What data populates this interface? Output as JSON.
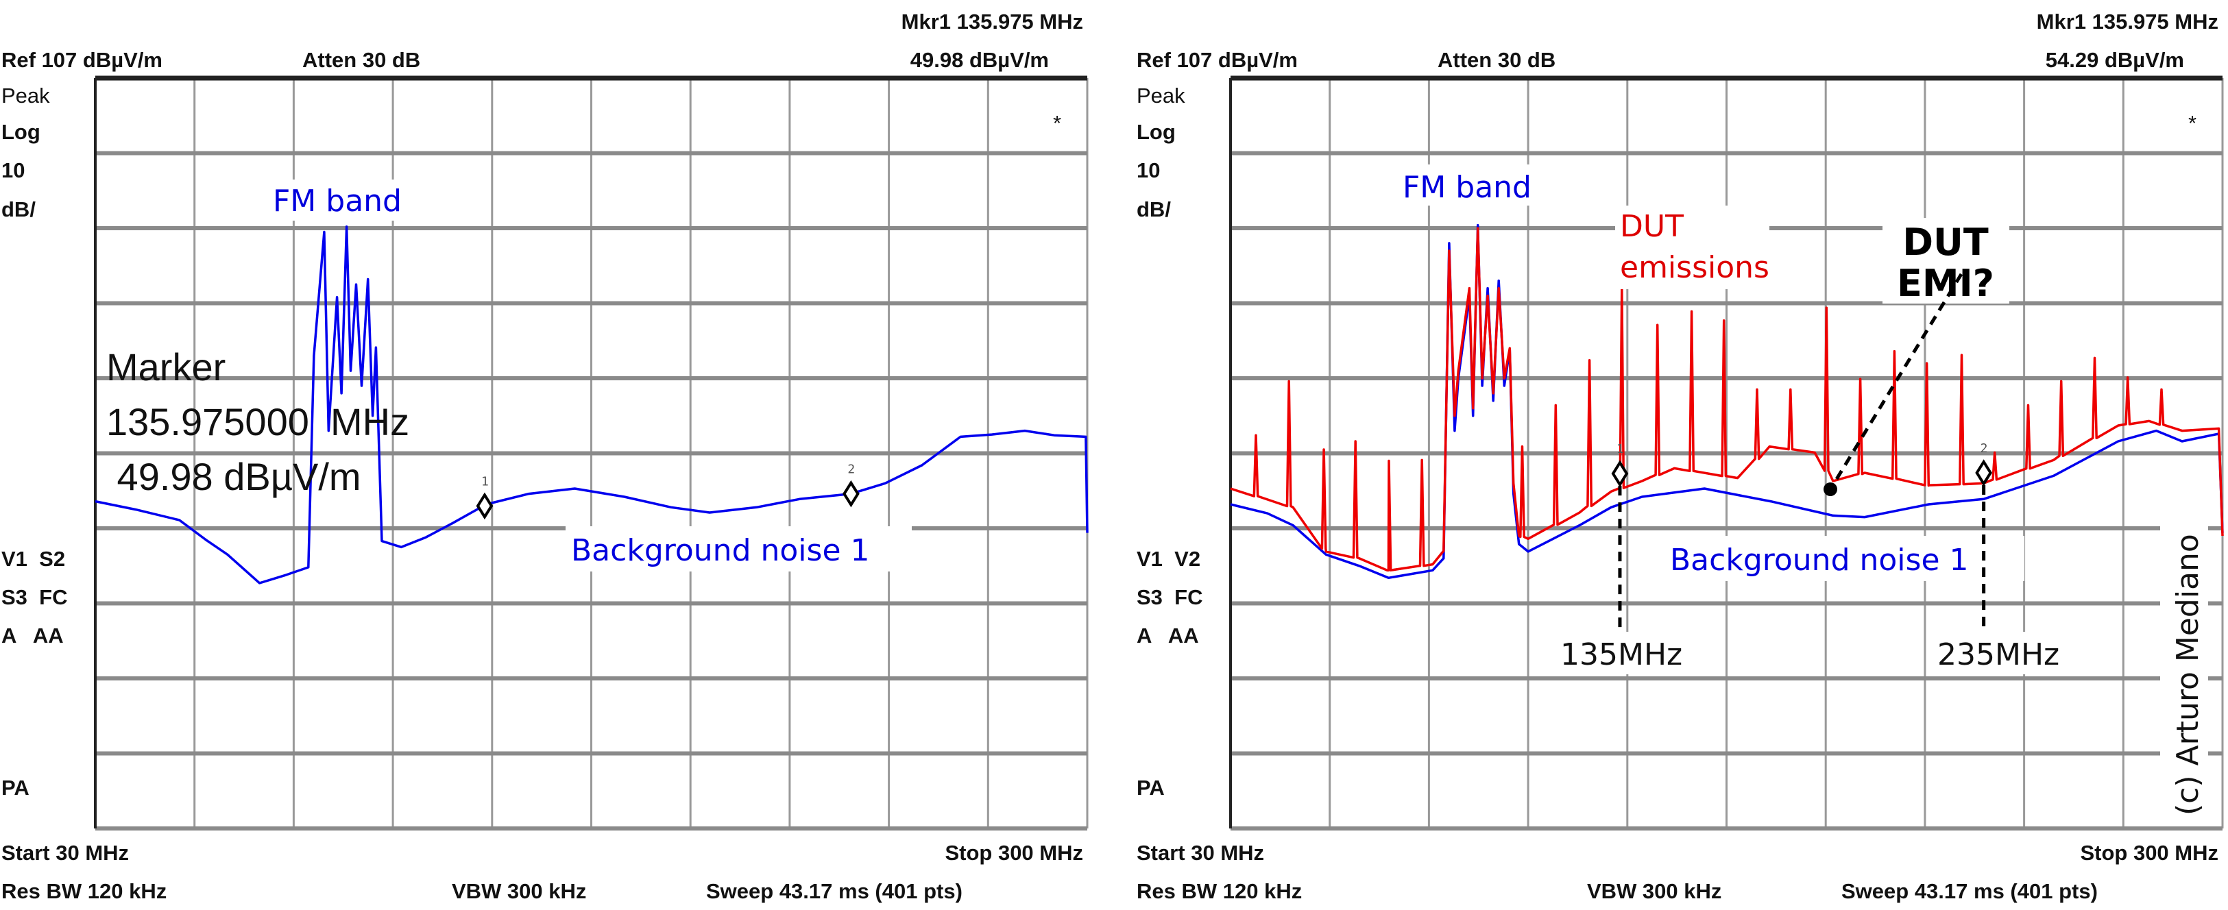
{
  "chart_data": [
    {
      "type": "line",
      "header": {
        "marker_freq": "Mkr1  135.975 MHz",
        "ref": "Ref 107 dBµV/m",
        "atten": "Atten 30 dB",
        "marker_level": "49.98 dBµV/m"
      },
      "side_labels": {
        "detector": "Peak",
        "scale": "Log",
        "div": "10",
        "div_unit": "dB/",
        "trace_a": "V1  S2",
        "trace_b": "S3  FC",
        "trace_c": "A   AA",
        "pa": "PA",
        "star": "*"
      },
      "footer": {
        "start": "Start 30 MHz",
        "stop": "Stop 300 MHz",
        "rbw": "Res BW 120 kHz",
        "vbw": "VBW 300 kHz",
        "sweep": "Sweep 43.17 ms (401 pts)"
      },
      "xlim": [
        30,
        300
      ],
      "ylim": [
        7,
        107
      ],
      "y_div_db": 10,
      "grid": true,
      "annotations": {
        "fm_band": "FM band",
        "marker_title": "Marker",
        "marker_freq": "135.975000  MHz",
        "marker_level": " 49.98 dBµV/m",
        "background": "Background noise 1"
      },
      "markers": [
        {
          "label": "1",
          "freq": 135.975,
          "level": 49.98
        },
        {
          "label": "2",
          "freq": 235.7,
          "level": 51.6
        }
      ],
      "series": [
        {
          "name": "Background noise 1",
          "color": "#0000ee",
          "points": [
            [
              30,
              50.6
            ],
            [
              41,
              49.5
            ],
            [
              52.9,
              48.1
            ],
            [
              60,
              45.5
            ],
            [
              66,
              43.5
            ],
            [
              74.7,
              39.7
            ],
            [
              82,
              40.8
            ],
            [
              88,
              41.8
            ],
            [
              89.5,
              70
            ],
            [
              92.3,
              86.5
            ],
            [
              93.5,
              60
            ],
            [
              95.8,
              77.8
            ],
            [
              97,
              65
            ],
            [
              98.4,
              87.2
            ],
            [
              99.5,
              68
            ],
            [
              101,
              79.5
            ],
            [
              102.5,
              66
            ],
            [
              104.2,
              80.2
            ],
            [
              105.5,
              62
            ],
            [
              106.4,
              71.1
            ],
            [
              108,
              45.3
            ],
            [
              113.3,
              44.5
            ],
            [
              120,
              45.8
            ],
            [
              127.3,
              47.7
            ],
            [
              136.4,
              50.2
            ],
            [
              148,
              51.6
            ],
            [
              160.5,
              52.3
            ],
            [
              174,
              51.2
            ],
            [
              186.7,
              49.8
            ],
            [
              197.2,
              49.1
            ],
            [
              210,
              49.8
            ],
            [
              221.7,
              50.9
            ],
            [
              235.7,
              51.6
            ],
            [
              245,
              53
            ],
            [
              255,
              55.4
            ],
            [
              265.5,
              59.2
            ],
            [
              274,
              59.5
            ],
            [
              283,
              60
            ],
            [
              291,
              59.4
            ],
            [
              299.6,
              59.2
            ],
            [
              300,
              46.4
            ]
          ]
        }
      ]
    },
    {
      "type": "line",
      "header": {
        "marker_freq": "Mkr1  135.975 MHz",
        "ref": "Ref 107 dBµV/m",
        "atten": "Atten 30 dB",
        "marker_level": "54.29 dBµV/m"
      },
      "side_labels": {
        "detector": "Peak",
        "scale": "Log",
        "div": "10",
        "div_unit": "dB/",
        "trace_a": "V1  V2",
        "trace_b": "S3  FC",
        "trace_c": "A   AA",
        "pa": "PA",
        "star": "*"
      },
      "footer": {
        "start": "Start 30 MHz",
        "stop": "Stop 300 MHz",
        "rbw": "Res BW 120 kHz",
        "vbw": "VBW 300 kHz",
        "sweep": "Sweep 43.17 ms (401 pts)"
      },
      "xlim": [
        30,
        300
      ],
      "ylim": [
        7,
        107
      ],
      "y_div_db": 10,
      "grid": true,
      "annotations": {
        "fm_band": "FM band",
        "dut_line1": "DUT",
        "dut_line2": "emissions",
        "emi_line1": "DUT",
        "emi_line2": "EMI?",
        "background": "Background noise 1",
        "label_135": "135MHz",
        "label_235": "235MHz",
        "copyright": "(c) Arturo Mediano"
      },
      "markers": [
        {
          "label": "1",
          "freq": 135.975,
          "level": 54.29
        },
        {
          "label": "2",
          "freq": 235.0,
          "level": 54.4
        }
      ],
      "series": [
        {
          "name": "Background noise 1",
          "color": "#0000ee",
          "points": [
            [
              30,
              50.2
            ],
            [
              40,
              49
            ],
            [
              47,
              47.4
            ],
            [
              56,
              43.5
            ],
            [
              65,
              42
            ],
            [
              73,
              40.4
            ],
            [
              85,
              41.4
            ],
            [
              88,
              43
            ],
            [
              89.5,
              85
            ],
            [
              91,
              60
            ],
            [
              92,
              67
            ],
            [
              95,
              78
            ],
            [
              96,
              62
            ],
            [
              97.3,
              87.4
            ],
            [
              98.5,
              66
            ],
            [
              100,
              79
            ],
            [
              101.5,
              64
            ],
            [
              103,
              80
            ],
            [
              104.5,
              66
            ],
            [
              106,
              70.8
            ],
            [
              107,
              51.6
            ],
            [
              108.5,
              44.9
            ],
            [
              111,
              43.9
            ],
            [
              125,
              47.4
            ],
            [
              133.6,
              49.8
            ],
            [
              142,
              51.2
            ],
            [
              159,
              52.3
            ],
            [
              177,
              50.6
            ],
            [
              194,
              48.7
            ],
            [
              202.6,
              48.5
            ],
            [
              220,
              50.2
            ],
            [
              235,
              50.9
            ],
            [
              254,
              54
            ],
            [
              271.6,
              58.6
            ],
            [
              282,
              60
            ],
            [
              289,
              58.6
            ],
            [
              299,
              59.6
            ],
            [
              300,
              46.4
            ]
          ]
        },
        {
          "name": "DUT emissions",
          "color": "#ee0000",
          "points": [
            [
              30,
              52.3
            ],
            [
              47,
              49.8
            ],
            [
              56,
              43.9
            ],
            [
              65,
              43
            ],
            [
              73,
              41.4
            ],
            [
              85,
              42.2
            ],
            [
              88,
              44
            ],
            [
              89.5,
              84
            ],
            [
              91,
              62
            ],
            [
              92,
              68
            ],
            [
              95,
              79
            ],
            [
              96,
              63
            ],
            [
              97.3,
              87
            ],
            [
              98.5,
              67
            ],
            [
              100,
              78
            ],
            [
              101.5,
              65
            ],
            [
              103,
              79
            ],
            [
              104.5,
              67
            ],
            [
              106,
              71
            ],
            [
              107,
              53
            ],
            [
              108.5,
              46
            ],
            [
              111,
              45.6
            ],
            [
              125,
              49.1
            ],
            [
              133.6,
              51.9
            ],
            [
              142,
              53.3
            ],
            [
              150.8,
              55
            ],
            [
              168,
              53.7
            ],
            [
              176.7,
              57.9
            ],
            [
              189,
              57.1
            ],
            [
              194,
              53.3
            ],
            [
              202.6,
              54.4
            ],
            [
              220,
              52.7
            ],
            [
              235,
              53
            ],
            [
              254,
              56.1
            ],
            [
              271.6,
              60.7
            ],
            [
              280,
              61.3
            ],
            [
              289,
              60
            ],
            [
              299,
              60.3
            ],
            [
              300,
              46
            ]
          ],
          "spikes": [
            [
              36.9,
              59.4
            ],
            [
              45.9,
              66.6
            ],
            [
              55.4,
              57.5
            ],
            [
              64,
              58.6
            ],
            [
              73.1,
              56
            ],
            [
              82.1,
              56.1
            ],
            [
              109.4,
              57.9
            ],
            [
              118.5,
              63.4
            ],
            [
              127.7,
              69.4
            ],
            [
              136.5,
              79
            ],
            [
              146.2,
              74.1
            ],
            [
              155.5,
              75.9
            ],
            [
              164.3,
              74.7
            ],
            [
              173.3,
              65.5
            ],
            [
              182.4,
              65.5
            ],
            [
              192.2,
              76.4
            ],
            [
              201.4,
              66.9
            ],
            [
              210.7,
              70.6
            ],
            [
              219.5,
              69
            ],
            [
              229,
              70.1
            ],
            [
              238,
              57.1
            ],
            [
              247.1,
              63.4
            ],
            [
              256.1,
              66.6
            ],
            [
              265.2,
              69.7
            ],
            [
              274.2,
              67.1
            ],
            [
              283.4,
              65.5
            ]
          ]
        }
      ]
    }
  ]
}
